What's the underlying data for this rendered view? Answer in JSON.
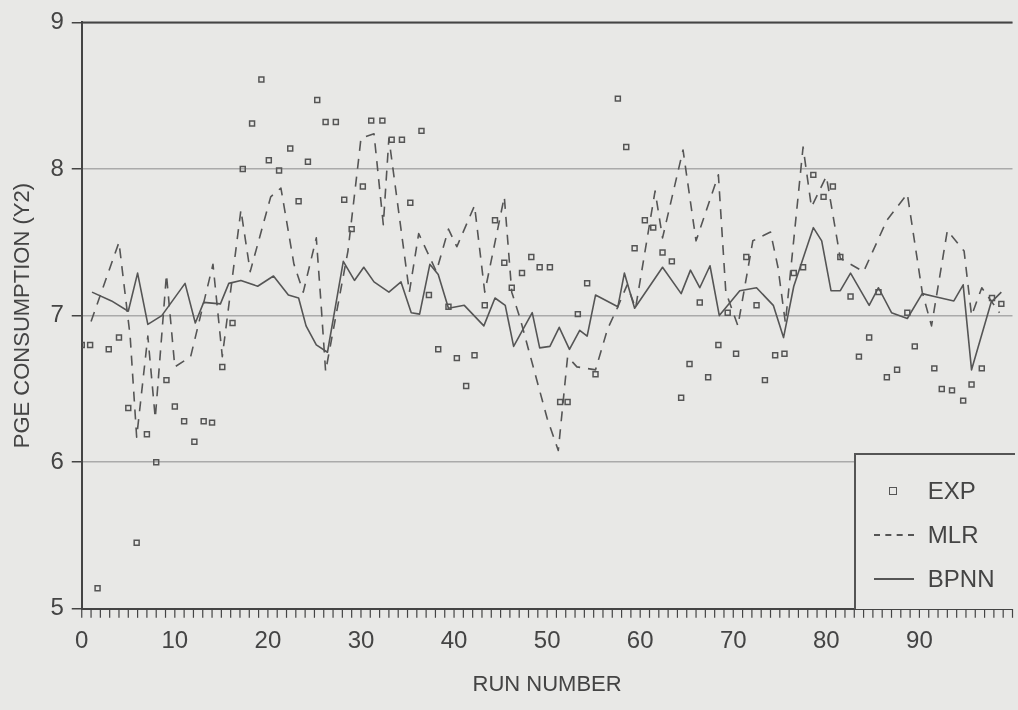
{
  "chart_data": {
    "type": "line",
    "xlabel": "RUN NUMBER",
    "ylabel": "PGE CONSUMPTION (Y2)",
    "xlim": [
      0,
      100
    ],
    "xticks": [
      0,
      10,
      20,
      30,
      40,
      50,
      60,
      70,
      80,
      90
    ],
    "ylim": [
      5,
      9
    ],
    "yticks": [
      5,
      6,
      7,
      8,
      9
    ],
    "grid": "y",
    "legend": "bottom right",
    "series": [
      {
        "name": "EXP",
        "type": "scatter",
        "marker": "square",
        "color": "#555555",
        "x": [
          0.0,
          0.9,
          1.7,
          2.9,
          4.0,
          5.0,
          5.9,
          7.0,
          8.0,
          9.1,
          10.0,
          11.0,
          12.1,
          13.1,
          14.0,
          15.1,
          16.2,
          17.3,
          18.3,
          19.3,
          20.1,
          21.2,
          22.4,
          23.3,
          24.3,
          25.3,
          26.2,
          27.3,
          28.2,
          29.0,
          30.2,
          31.1,
          32.3,
          33.3,
          34.4,
          35.3,
          36.5,
          37.3,
          38.3,
          39.4,
          40.3,
          41.3,
          42.2,
          43.3,
          44.4,
          45.4,
          46.2,
          47.3,
          48.3,
          49.2,
          50.3,
          51.4,
          52.2,
          53.3,
          54.3,
          55.2,
          57.6,
          58.5,
          59.4,
          60.5,
          61.4,
          62.4,
          63.4,
          64.4,
          65.3,
          66.4,
          67.3,
          68.4,
          69.4,
          70.3,
          71.4,
          72.5,
          73.4,
          74.5,
          75.5,
          76.5,
          77.5,
          78.6,
          79.7,
          80.7,
          81.5,
          82.6,
          83.5,
          84.6,
          85.6,
          86.5,
          87.6,
          88.7,
          89.5,
          91.6,
          92.4,
          93.5,
          94.7,
          95.6,
          96.7,
          97.8,
          98.8
        ],
        "values": [
          6.8,
          6.8,
          5.14,
          6.77,
          6.85,
          6.37,
          5.45,
          6.19,
          6.0,
          6.56,
          6.38,
          6.28,
          6.14,
          6.28,
          6.27,
          6.65,
          6.95,
          8.0,
          8.31,
          8.61,
          8.06,
          7.99,
          8.14,
          7.78,
          8.05,
          8.47,
          8.32,
          8.32,
          7.79,
          7.59,
          7.88,
          8.33,
          8.33,
          8.2,
          8.2,
          7.77,
          8.26,
          7.14,
          6.77,
          7.06,
          6.71,
          6.52,
          6.73,
          7.07,
          7.65,
          7.36,
          7.19,
          7.29,
          7.4,
          7.33,
          7.33,
          6.41,
          6.41,
          7.01,
          7.22,
          6.6,
          8.48,
          8.15,
          7.46,
          7.65,
          7.6,
          7.43,
          7.37,
          6.44,
          6.67,
          7.09,
          6.58,
          6.8,
          7.02,
          6.74,
          7.4,
          7.07,
          6.56,
          6.73,
          6.74,
          7.29,
          7.33,
          7.96,
          7.81,
          7.88,
          7.4,
          7.13,
          6.72,
          6.85,
          7.16,
          6.58,
          6.63,
          7.02,
          6.79,
          6.64,
          6.5,
          6.49,
          6.42,
          6.53,
          6.64,
          7.12,
          7.08
        ]
      },
      {
        "name": "MLR",
        "type": "line",
        "line_style": "dashed",
        "color": "#555555",
        "x": [
          1.0,
          4.0,
          5.2,
          5.9,
          7.1,
          7.9,
          9.1,
          10.0,
          11.7,
          14.1,
          15.1,
          17.1,
          18.1,
          20.3,
          21.4,
          22.8,
          23.8,
          25.2,
          25.7,
          26.2,
          28.6,
          29.7,
          30.0,
          31.4,
          32.4,
          33.0,
          35.2,
          36.2,
          38.1,
          39.4,
          40.3,
          42.2,
          43.3,
          45.4,
          46.2,
          47.1,
          50.0,
          51.2,
          52.2,
          53.2,
          55.2,
          56.5,
          57.6,
          58.6,
          59.5,
          61.6,
          62.4,
          64.6,
          66.0,
          68.4,
          69.2,
          70.5,
          72.1,
          74.0,
          74.8,
          75.6,
          77.5,
          78.4,
          80.0,
          81.5,
          84.0,
          86.5,
          88.7,
          90.3,
          91.3,
          93.0,
          94.8,
          95.6,
          96.7,
          98.6
        ],
        "values": [
          6.96,
          7.5,
          6.86,
          6.17,
          6.86,
          6.3,
          7.28,
          6.65,
          6.72,
          7.35,
          6.72,
          7.72,
          7.3,
          7.81,
          7.87,
          7.35,
          7.16,
          7.53,
          7.09,
          6.62,
          7.44,
          8.04,
          8.21,
          8.24,
          7.62,
          8.21,
          7.16,
          7.56,
          7.3,
          7.59,
          7.47,
          7.75,
          7.16,
          7.81,
          7.16,
          6.98,
          6.3,
          6.08,
          6.72,
          6.65,
          6.63,
          6.91,
          7.06,
          7.21,
          7.05,
          7.85,
          7.53,
          8.13,
          7.51,
          7.96,
          7.16,
          6.93,
          7.51,
          7.57,
          7.33,
          6.95,
          8.15,
          7.74,
          7.95,
          7.39,
          7.3,
          7.65,
          7.83,
          7.16,
          6.93,
          7.58,
          7.44,
          7.0,
          7.19,
          7.02
        ]
      },
      {
        "name": "BPNN",
        "type": "line",
        "line_style": "solid",
        "color": "#555555",
        "x": [
          1.1,
          3.2,
          5.0,
          6.0,
          7.1,
          8.6,
          11.1,
          12.2,
          13.1,
          14.9,
          15.8,
          17.1,
          18.9,
          20.6,
          22.2,
          23.3,
          24.1,
          25.2,
          26.4,
          28.1,
          29.3,
          30.3,
          31.4,
          33.0,
          34.3,
          35.4,
          36.3,
          37.4,
          38.3,
          39.4,
          41.1,
          43.2,
          44.4,
          45.5,
          46.4,
          48.4,
          49.2,
          50.3,
          51.3,
          52.4,
          53.5,
          54.3,
          55.2,
          57.6,
          58.3,
          59.4,
          62.4,
          64.4,
          65.4,
          66.4,
          67.5,
          68.5,
          70.7,
          72.5,
          74.3,
          75.4,
          76.5,
          78.6,
          79.5,
          80.5,
          81.5,
          82.6,
          84.6,
          85.6,
          87.0,
          88.7,
          90.3,
          91.6,
          93.7,
          94.7,
          95.6,
          97.7,
          98.8
        ],
        "values": [
          7.16,
          7.1,
          7.03,
          7.29,
          6.94,
          7.0,
          7.22,
          6.95,
          7.09,
          7.08,
          7.22,
          7.24,
          7.2,
          7.27,
          7.14,
          7.12,
          6.93,
          6.8,
          6.75,
          7.37,
          7.24,
          7.33,
          7.23,
          7.16,
          7.23,
          7.02,
          7.01,
          7.35,
          7.28,
          7.05,
          7.07,
          6.93,
          7.12,
          7.07,
          6.79,
          7.02,
          6.78,
          6.79,
          6.92,
          6.77,
          6.9,
          6.86,
          7.14,
          7.06,
          7.29,
          7.05,
          7.33,
          7.15,
          7.31,
          7.19,
          7.34,
          7.0,
          7.17,
          7.19,
          7.07,
          6.85,
          7.2,
          7.6,
          7.51,
          7.17,
          7.17,
          7.29,
          7.07,
          7.19,
          7.02,
          6.98,
          7.15,
          7.13,
          7.1,
          7.21,
          6.63,
          7.09,
          7.16
        ]
      }
    ]
  }
}
